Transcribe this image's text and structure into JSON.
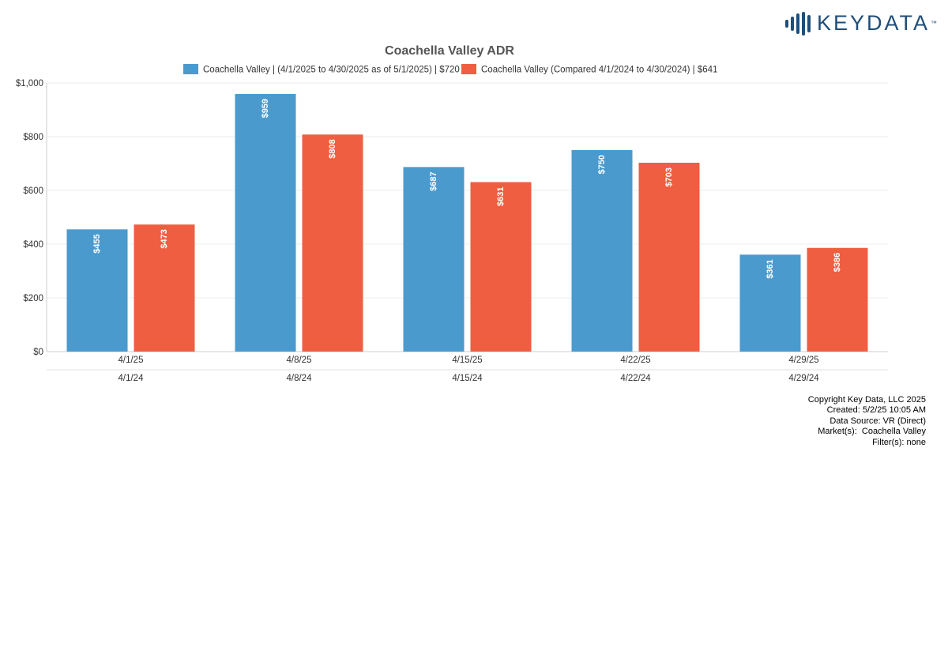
{
  "brand": {
    "name": "KEYDATA",
    "tm": "™",
    "color": "#1f4e79"
  },
  "chart_data": {
    "type": "bar",
    "title": "Coachella Valley ADR",
    "categories": [
      "4/1/25",
      "4/8/25",
      "4/15/25",
      "4/22/25",
      "4/29/25"
    ],
    "categories_secondary": [
      "4/1/24",
      "4/8/24",
      "4/15/24",
      "4/22/24",
      "4/29/24"
    ],
    "series": [
      {
        "name": "Coachella Valley | (4/1/2025 to 4/30/2025 as of 5/1/2025) | $720",
        "color": "#4a9ace",
        "values": [
          455,
          959,
          687,
          750,
          361
        ],
        "labels": [
          "$455",
          "$959",
          "$687",
          "$750",
          "$361"
        ]
      },
      {
        "name": "Coachella Valley (Compared 4/1/2024 to 4/30/2024) | $641",
        "color": "#ef5e40",
        "values": [
          473,
          808,
          631,
          703,
          386
        ],
        "labels": [
          "$473",
          "$808",
          "$631",
          "$703",
          "$386"
        ]
      }
    ],
    "ylim": [
      0,
      1000
    ],
    "yticks": [
      0,
      200,
      400,
      600,
      800,
      1000
    ],
    "ytick_labels": [
      "$0",
      "$200",
      "$400",
      "$600",
      "$800",
      "$1,000"
    ],
    "xlabel": "",
    "ylabel": "",
    "grid": true,
    "legend": "top-center"
  },
  "footer": {
    "copyright": "Copyright Key Data, LLC 2025",
    "created": "Created: 5/2/25 10:05 AM",
    "source": "Data Source: VR (Direct)",
    "markets": "Market(s):  Coachella Valley",
    "filters": "Filter(s): none"
  }
}
